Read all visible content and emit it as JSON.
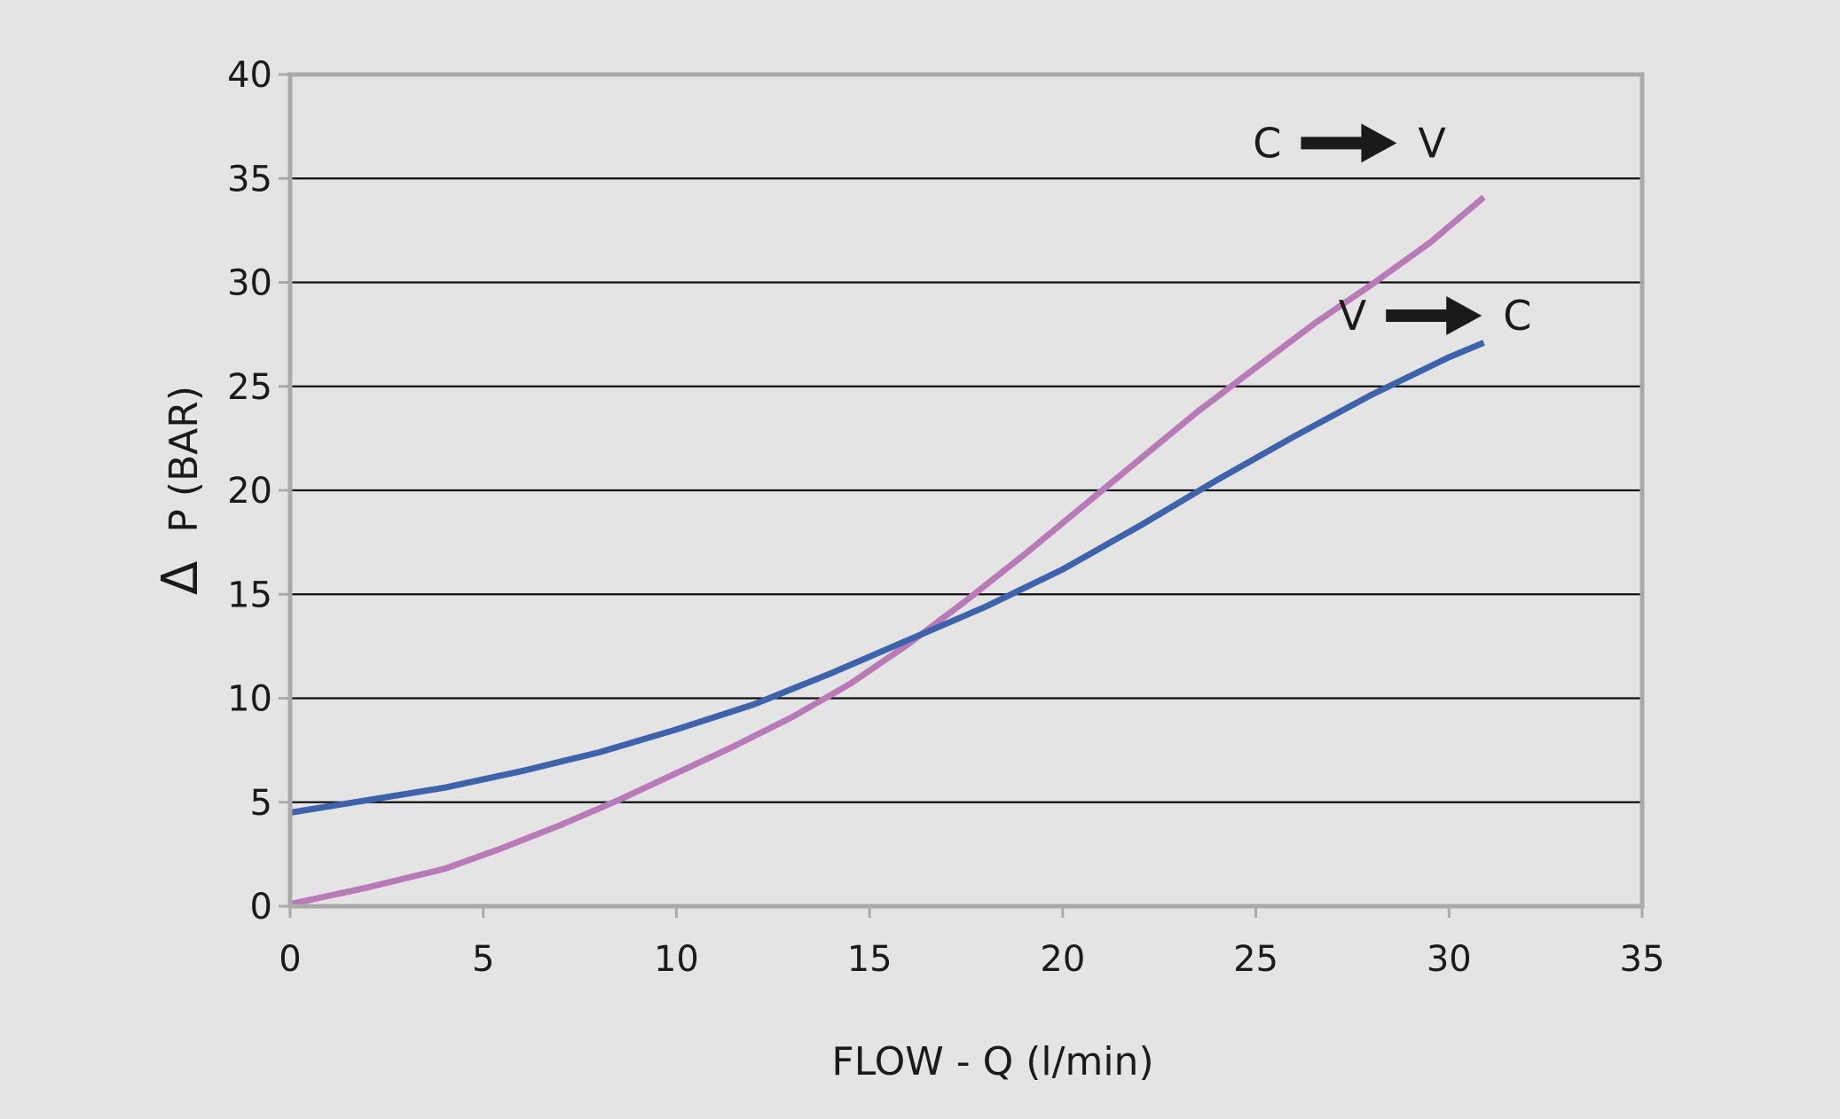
{
  "chart_data": {
    "type": "line",
    "title": "",
    "xlabel": "FLOW - Q (l/min)",
    "ylabel_symbol": "Δ",
    "ylabel": "P (BAR)",
    "xlim": [
      0,
      35
    ],
    "ylim": [
      0,
      40
    ],
    "xticks": [
      "0",
      "5",
      "10",
      "15",
      "20",
      "25",
      "30",
      "35"
    ],
    "yticks": [
      "0",
      "5",
      "10",
      "15",
      "20",
      "25",
      "30",
      "35",
      "40"
    ],
    "grid": "horizontal",
    "series": [
      {
        "color": "#b87bb8",
        "x": [
          0,
          2,
          4,
          5.5,
          7,
          8.5,
          10,
          11.5,
          13,
          14.5,
          16,
          17.5,
          19,
          20.5,
          22,
          23.5,
          25,
          26.5,
          28,
          29.5,
          30.9
        ],
        "y": [
          0.1,
          0.9,
          1.8,
          2.8,
          3.9,
          5.1,
          6.4,
          7.7,
          9.1,
          10.7,
          12.6,
          14.7,
          16.9,
          19.2,
          21.5,
          23.8,
          25.9,
          28.0,
          29.9,
          31.9,
          34.1
        ]
      },
      {
        "color": "#3e62ac",
        "x": [
          0,
          2,
          4,
          6,
          8,
          10,
          12,
          14,
          16,
          18,
          20,
          22,
          24,
          26,
          28,
          30,
          30.9
        ],
        "y": [
          4.5,
          5.1,
          5.7,
          6.5,
          7.4,
          8.5,
          9.7,
          11.2,
          12.8,
          14.4,
          16.2,
          18.3,
          20.5,
          22.6,
          24.6,
          26.4,
          27.1
        ]
      }
    ],
    "annotations": [
      {
        "from": "C",
        "to": "V",
        "x": 27.5,
        "y": 36.7
      },
      {
        "from": "V",
        "to": "C",
        "x": 29.7,
        "y": 28.4
      }
    ]
  }
}
